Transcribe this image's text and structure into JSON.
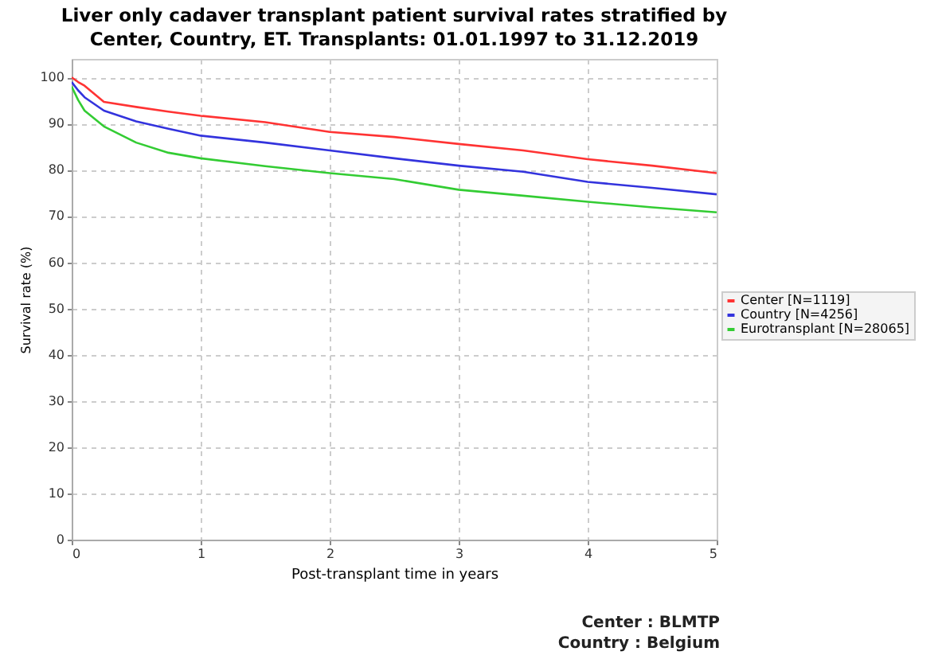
{
  "chart_data": {
    "type": "line",
    "title": "Liver only cadaver transplant patient survival rates stratified by Center, Country, ET. Transplants: 01.01.1997 to 31.12.2019",
    "xlabel": "Post-transplant time in years",
    "ylabel": "Survival rate (%)",
    "x": [
      0,
      0.05,
      0.1,
      0.25,
      0.5,
      0.75,
      1,
      1.5,
      2,
      2.5,
      3,
      3.5,
      4,
      4.5,
      5
    ],
    "series": [
      {
        "name": "Center [N=1119]",
        "color": "#ff3333",
        "values": [
          100,
          99,
          98.2,
          94.7,
          93.6,
          92.6,
          91.7,
          90.3,
          88.2,
          87.1,
          85.6,
          84.2,
          82.3,
          80.9,
          79.3
        ]
      },
      {
        "name": "Country [N=4256]",
        "color": "#3333dd",
        "values": [
          99,
          97.2,
          95.7,
          92.8,
          90.5,
          88.9,
          87.4,
          85.9,
          84.2,
          82.5,
          80.9,
          79.6,
          77.4,
          76.1,
          74.7
        ]
      },
      {
        "name": "Eurotransplant [N=28065]",
        "color": "#33cc33",
        "values": [
          98,
          95.1,
          92.8,
          89.4,
          85.9,
          83.7,
          82.5,
          80.8,
          79.3,
          78,
          75.7,
          74.4,
          73.1,
          71.9,
          70.8
        ]
      }
    ],
    "xlim": [
      0,
      5
    ],
    "xticks": [
      0,
      1,
      2,
      3,
      4,
      5
    ],
    "ylim": [
      0,
      104
    ],
    "yticks": [
      0,
      10,
      20,
      30,
      40,
      50,
      60,
      70,
      80,
      90,
      100
    ],
    "grid": true,
    "legend": "right",
    "line_style": "solid",
    "marker": "none",
    "annotations": [
      "Center : BLMTP",
      "Country : Belgium"
    ]
  }
}
